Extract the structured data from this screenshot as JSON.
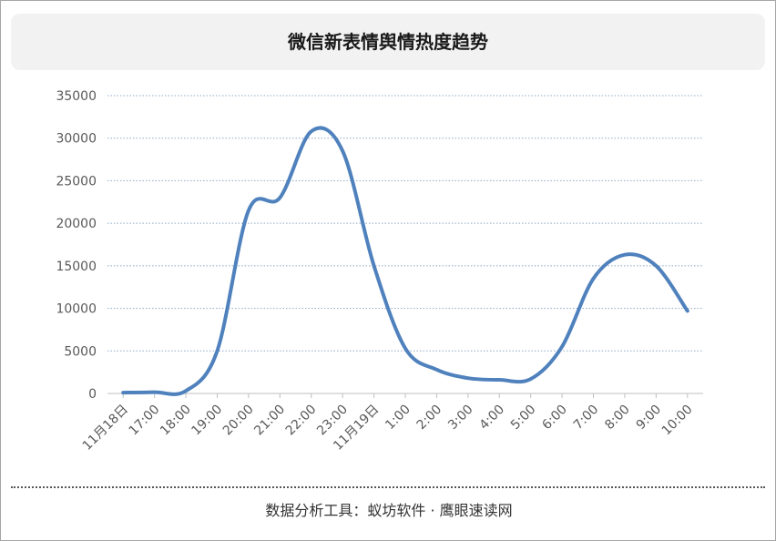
{
  "title": "微信新表情舆情热度趋势",
  "footer": "数据分析工具：蚁坊软件 · 鹰眼速读网",
  "colors": {
    "line": "#4f81bd",
    "grid": "#8ea9c8",
    "axis": "#bfbfbf",
    "tick_text": "#595959"
  },
  "chart_data": {
    "type": "line",
    "title": "微信新表情舆情热度趋势",
    "categories": [
      "11月18日",
      "17:00",
      "18:00",
      "19:00",
      "20:00",
      "21:00",
      "22:00",
      "23:00",
      "11月19日",
      "1:00",
      "2:00",
      "3:00",
      "4:00",
      "5:00",
      "6:00",
      "7:00",
      "8:00",
      "9:00",
      "10:00"
    ],
    "y_ticks": [
      "0",
      "5000",
      "10000",
      "15000",
      "20000",
      "25000",
      "30000",
      "35000"
    ],
    "ylim": [
      0,
      35000
    ],
    "grid": true,
    "series": [
      {
        "values": [
          100,
          150,
          300,
          5000,
          21500,
          23000,
          30800,
          28500,
          15000,
          5300,
          2800,
          1800,
          1600,
          1700,
          5500,
          13500,
          16300,
          15000,
          9700
        ]
      }
    ]
  }
}
